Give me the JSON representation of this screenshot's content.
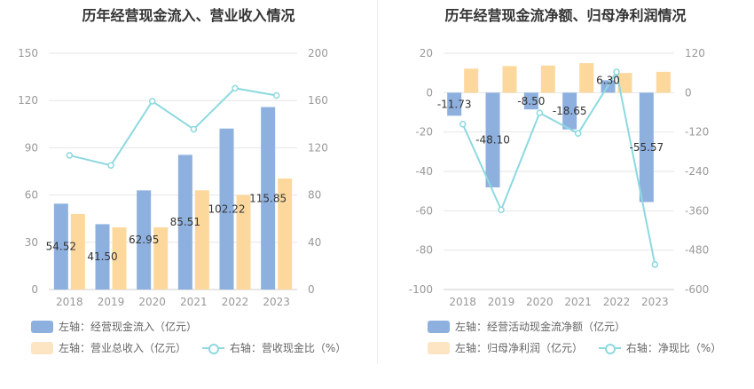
{
  "chart_data": [
    {
      "type": "bar",
      "title": "历年经营现金流入、营业收入情况",
      "categories": [
        "2018",
        "2019",
        "2020",
        "2021",
        "2022",
        "2023"
      ],
      "left_axis": {
        "min": 0,
        "max": 150,
        "ticks": [
          "0",
          "30",
          "60",
          "90",
          "120",
          "150"
        ]
      },
      "right_axis": {
        "min": 0,
        "max": 200,
        "ticks": [
          "0",
          "40",
          "80",
          "120",
          "160",
          "200"
        ]
      },
      "series": [
        {
          "name": "左轴：经营现金流入（亿元）",
          "kind": "bar",
          "axis": "left",
          "color": "#8eb0df",
          "values": [
            54.52,
            41.5,
            62.95,
            85.51,
            102.22,
            115.85
          ],
          "labels": [
            "54.52",
            "41.50",
            "62.95",
            "85.51",
            "102.22",
            "115.85"
          ]
        },
        {
          "name": "左轴：营业总收入（亿元）",
          "kind": "bar",
          "axis": "left",
          "color": "#fdd89d",
          "values": [
            48,
            39.5,
            39.5,
            63,
            60,
            70.5
          ]
        },
        {
          "name": "右轴：营收现金比（%）",
          "kind": "line",
          "axis": "right",
          "color": "#8dd9e0",
          "values": [
            113.6,
            105.1,
            159.4,
            135.7,
            170.4,
            164.3
          ]
        }
      ]
    },
    {
      "type": "bar",
      "title": "历年经营现金流净额、归母净利润情况",
      "categories": [
        "2018",
        "2019",
        "2020",
        "2021",
        "2022",
        "2023"
      ],
      "left_axis": {
        "min": -100,
        "max": 20,
        "ticks": [
          "-100",
          "-80",
          "-60",
          "-40",
          "-20",
          "0",
          "20"
        ]
      },
      "right_axis": {
        "min": -600,
        "max": 120,
        "ticks": [
          "-600",
          "-480",
          "-360",
          "-240",
          "-120",
          "0",
          "120"
        ]
      },
      "series": [
        {
          "name": "左轴：经营活动现金流净额（亿元）",
          "kind": "bar",
          "axis": "left",
          "color": "#8eb0df",
          "values": [
            -11.73,
            -48.1,
            -8.5,
            -18.65,
            6.3,
            -55.57
          ],
          "labels": [
            "-11.73",
            "-48.10",
            "-8.50",
            "-18.65",
            "6.30",
            "-55.57"
          ]
        },
        {
          "name": "左轴：归母净利润（亿元）",
          "kind": "bar",
          "axis": "left",
          "color": "#fdd89d",
          "values": [
            12.2,
            13.5,
            13.8,
            15,
            10,
            10.6
          ]
        },
        {
          "name": "右轴：净现比（%）",
          "kind": "line",
          "axis": "right",
          "color": "#8dd9e0",
          "values": [
            -96,
            -357,
            -61.6,
            -124.3,
            63,
            -524
          ]
        }
      ]
    }
  ]
}
